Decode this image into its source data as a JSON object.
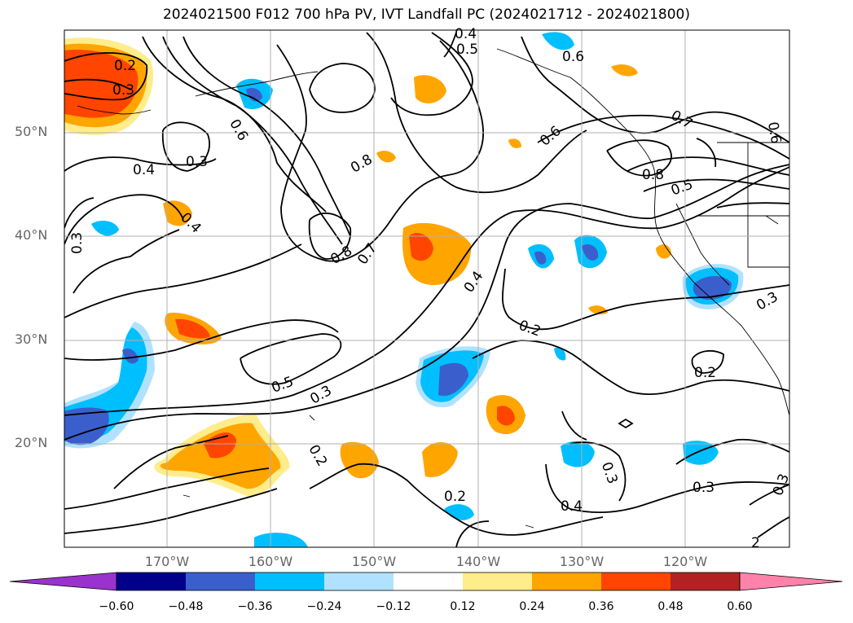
{
  "title": "2024021500 F012 700 hPa PV, IVT Landfall PC (2024021712 - 2024021800)",
  "lat_ticks": [
    "50°N",
    "40°N",
    "30°N",
    "20°N"
  ],
  "lon_ticks": [
    "170°W",
    "160°W",
    "150°W",
    "140°W",
    "130°W",
    "120°W"
  ],
  "colorbar": {
    "ticks": [
      "−0.60",
      "−0.48",
      "−0.36",
      "−0.24",
      "−0.12",
      "0.12",
      "0.24",
      "0.36",
      "0.48",
      "0.60"
    ],
    "colors": [
      "#9a32cd",
      "#00008b",
      "#3a5fcd",
      "#00bfff",
      "#b0e2ff",
      "#ffffff",
      "#ffec8b",
      "#ffa500",
      "#ff4500",
      "#b22222",
      "#ff82ab"
    ]
  },
  "contour_labels": [
    "0.2",
    "0.3",
    "0.6",
    "0.3",
    "0.4",
    "0.3",
    "0.8",
    "0.8",
    "0.7",
    "0.4",
    "0.4",
    "0.6",
    "0.7",
    "0.8",
    "0.5",
    "0.4",
    "0.5",
    "0.6",
    "0.3",
    "0.2",
    "0.2",
    "0.3",
    "0.5",
    "0.2",
    "0.2",
    "0.3",
    "0.4",
    "0.3",
    "0.3",
    "2",
    "0.6"
  ]
}
